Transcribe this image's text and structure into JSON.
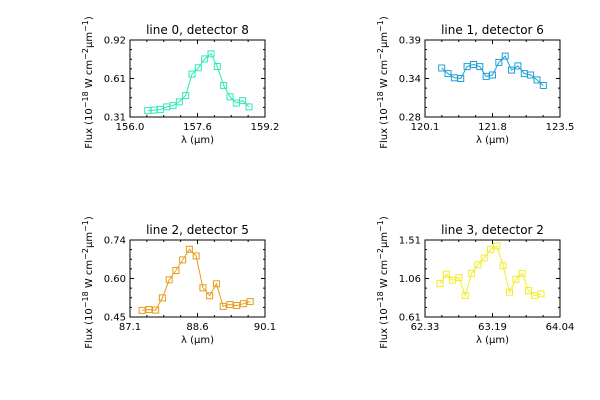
{
  "chart_data": [
    {
      "type": "line",
      "title": "line 0, detector 8",
      "xlabel": "λ (μm)",
      "ylabel_main": "Flux (10",
      "ylabel_exp1": "−18",
      "ylabel_mid": " W cm",
      "ylabel_exp2": "−2",
      "ylabel_end": "μm",
      "ylabel_exp3": "−1",
      "ylabel_close": ")",
      "xlim": [
        156.0,
        159.2
      ],
      "ylim": [
        0.31,
        0.92
      ],
      "xticks": [
        "156.0",
        "157.6",
        "159.2"
      ],
      "yticks": [
        "0.31",
        "0.61",
        "0.92"
      ],
      "color": "#2ee8b8",
      "marker": "open-square",
      "series": [
        {
          "x": [
            156.42,
            156.57,
            156.72,
            156.87,
            157.02,
            157.17,
            157.32,
            157.47,
            157.62,
            157.77,
            157.92,
            158.07,
            158.22,
            158.37,
            158.52,
            158.67,
            158.82
          ],
          "y": [
            0.36,
            0.365,
            0.37,
            0.39,
            0.4,
            0.43,
            0.48,
            0.65,
            0.7,
            0.77,
            0.81,
            0.71,
            0.56,
            0.47,
            0.42,
            0.44,
            0.39
          ]
        }
      ]
    },
    {
      "type": "line",
      "title": "line 1, detector 6",
      "xlabel": "λ (μm)",
      "ylabel_main": "Flux (10",
      "ylabel_exp1": "−18",
      "ylabel_mid": " W cm",
      "ylabel_exp2": "−2",
      "ylabel_end": "μm",
      "ylabel_exp3": "−1",
      "ylabel_close": ")",
      "xlim": [
        120.1,
        123.5
      ],
      "ylim": [
        0.28,
        0.39
      ],
      "xticks": [
        "120.1",
        "121.8",
        "123.5"
      ],
      "yticks": [
        "0.28",
        "0.34",
        "0.39"
      ],
      "color": "#1f9ed8",
      "marker": "open-square",
      "series": [
        {
          "x": [
            120.52,
            120.68,
            120.84,
            121.0,
            121.16,
            121.32,
            121.48,
            121.64,
            121.8,
            121.96,
            122.12,
            122.28,
            122.44,
            122.6,
            122.76,
            122.92,
            123.08
          ],
          "y": [
            0.35,
            0.342,
            0.336,
            0.335,
            0.352,
            0.355,
            0.352,
            0.338,
            0.34,
            0.358,
            0.367,
            0.347,
            0.353,
            0.342,
            0.34,
            0.333,
            0.325
          ]
        }
      ]
    },
    {
      "type": "line",
      "title": "line 2, detector 5",
      "xlabel": "λ (μm)",
      "ylabel_main": "Flux (10",
      "ylabel_exp1": "−18",
      "ylabel_mid": " W cm",
      "ylabel_exp2": "−2",
      "ylabel_end": "μm",
      "ylabel_exp3": "−1",
      "ylabel_close": ")",
      "xlim": [
        87.1,
        90.1
      ],
      "ylim": [
        0.45,
        0.74
      ],
      "xticks": [
        "87.1",
        "88.6",
        "90.1"
      ],
      "yticks": [
        "0.45",
        "0.60",
        "0.74"
      ],
      "color": "#e79c17",
      "marker": "open-square",
      "series": [
        {
          "x": [
            87.37,
            87.52,
            87.67,
            87.82,
            87.97,
            88.12,
            88.27,
            88.42,
            88.57,
            88.72,
            88.87,
            89.02,
            89.17,
            89.32,
            89.47,
            89.62,
            89.77
          ],
          "y": [
            0.475,
            0.478,
            0.476,
            0.522,
            0.59,
            0.625,
            0.665,
            0.705,
            0.68,
            0.56,
            0.53,
            0.575,
            0.49,
            0.497,
            0.493,
            0.5,
            0.508
          ]
        }
      ]
    },
    {
      "type": "line",
      "title": "line 3, detector 2",
      "xlabel": "λ (μm)",
      "ylabel_main": "Flux (10",
      "ylabel_exp1": "−18",
      "ylabel_mid": " W cm",
      "ylabel_exp2": "−2",
      "ylabel_end": "μm",
      "ylabel_exp3": "−1",
      "ylabel_close": ")",
      "xlim": [
        62.33,
        64.04
      ],
      "ylim": [
        0.61,
        1.51
      ],
      "xticks": [
        "62.33",
        "63.19",
        "64.04"
      ],
      "yticks": [
        "0.61",
        "1.06",
        "1.51"
      ],
      "color": "#f2ee22",
      "marker": "open-square",
      "series": [
        {
          "x": [
            62.52,
            62.6,
            62.68,
            62.76,
            62.84,
            62.92,
            63.0,
            63.08,
            63.16,
            63.24,
            63.32,
            63.4,
            63.48,
            63.56,
            63.64,
            63.72,
            63.8
          ],
          "y": [
            1.0,
            1.11,
            1.04,
            1.07,
            0.86,
            1.12,
            1.22,
            1.3,
            1.4,
            1.44,
            1.21,
            0.9,
            1.05,
            1.12,
            0.92,
            0.86,
            0.88
          ]
        }
      ]
    }
  ]
}
